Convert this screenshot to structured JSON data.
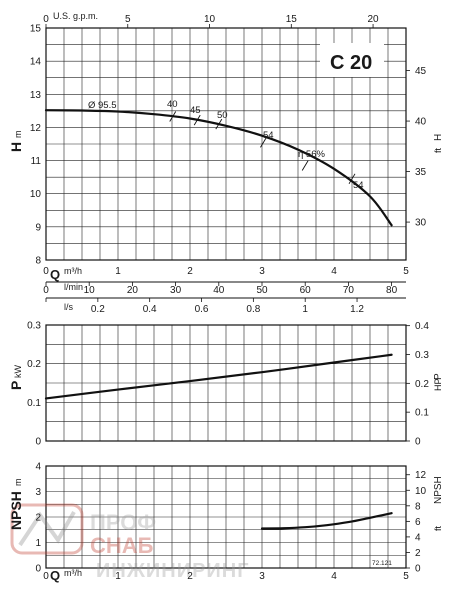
{
  "chart_data": [
    {
      "type": "line",
      "title": "C 20",
      "ylabel": "H",
      "ylabel_unit": "m",
      "ylim": [
        8,
        15
      ],
      "yticks": [
        "8",
        "9",
        "10",
        "11",
        "12",
        "13",
        "14",
        "15"
      ],
      "y2label": "H",
      "y2label_unit": "ft",
      "y2ticks": [
        "30",
        "35",
        "40",
        "45"
      ],
      "top_axis_label": "U.S. g.p.m.",
      "top_ticks": [
        "0",
        "5",
        "10",
        "15",
        "20"
      ],
      "xlabel": "Q",
      "xlabel_unit": "m³/h",
      "xlim": [
        0,
        5
      ],
      "xticks": [
        "0",
        "1",
        "2",
        "3",
        "4",
        "5"
      ],
      "x_lmin_label": "l/min",
      "x_lmin_ticks": [
        "0",
        "10",
        "20",
        "30",
        "40",
        "50",
        "60",
        "70",
        "80"
      ],
      "x_ls_label": "l/s",
      "x_ls_ticks": [
        "0",
        "0.2",
        "0.4",
        "0.6",
        "0.8",
        "1",
        "1.2"
      ],
      "series": [
        {
          "name": "Ø 95.5",
          "x": [
            0,
            0.5,
            1,
            1.5,
            2,
            2.5,
            3,
            3.5,
            4,
            4.5,
            4.8
          ],
          "y": [
            12.52,
            12.51,
            12.48,
            12.4,
            12.27,
            12.05,
            11.75,
            11.33,
            10.75,
            9.92,
            9.05
          ]
        }
      ],
      "annotations": [
        "Ø 95.5",
        "40",
        "45",
        "50",
        "54",
        "η 56%",
        "54"
      ]
    },
    {
      "type": "line",
      "ylabel": "P",
      "ylabel_unit": "kW",
      "ylim": [
        0,
        0.3
      ],
      "yticks": [
        "0",
        "0.1",
        "0.2",
        "0.3"
      ],
      "y2label": "P",
      "y2label_unit": "HP",
      "y2ticks": [
        "0",
        "0.1",
        "0.2",
        "0.3",
        "0.4"
      ],
      "xlim": [
        0,
        5
      ],
      "series": [
        {
          "x": [
            0,
            1,
            2,
            3,
            4,
            4.8
          ],
          "y": [
            0.11,
            0.133,
            0.155,
            0.178,
            0.203,
            0.223
          ]
        }
      ]
    },
    {
      "type": "line",
      "ylabel": "NPSH",
      "ylabel_unit": "m",
      "ylim": [
        0,
        4
      ],
      "yticks": [
        "0",
        "1",
        "2",
        "3",
        "4"
      ],
      "y2label": "NPSH",
      "y2label_unit": "ft",
      "y2ticks": [
        "0",
        "2",
        "4",
        "6",
        "8",
        "10",
        "12"
      ],
      "xlabel": "Q",
      "xlabel_unit": "m³/h",
      "xlim": [
        0,
        5
      ],
      "xticks": [
        "0",
        "1",
        "2",
        "3",
        "4",
        "5"
      ],
      "series": [
        {
          "x": [
            3,
            3.3,
            3.6,
            3.9,
            4.2,
            4.5,
            4.8
          ],
          "y": [
            1.55,
            1.56,
            1.6,
            1.68,
            1.8,
            1.97,
            2.15
          ]
        }
      ]
    }
  ],
  "watermark": {
    "line1": "ПРОФ",
    "line2": "СНАБ",
    "line3": "ИНЖИНИРИНГ"
  },
  "footer_code": "72.121"
}
